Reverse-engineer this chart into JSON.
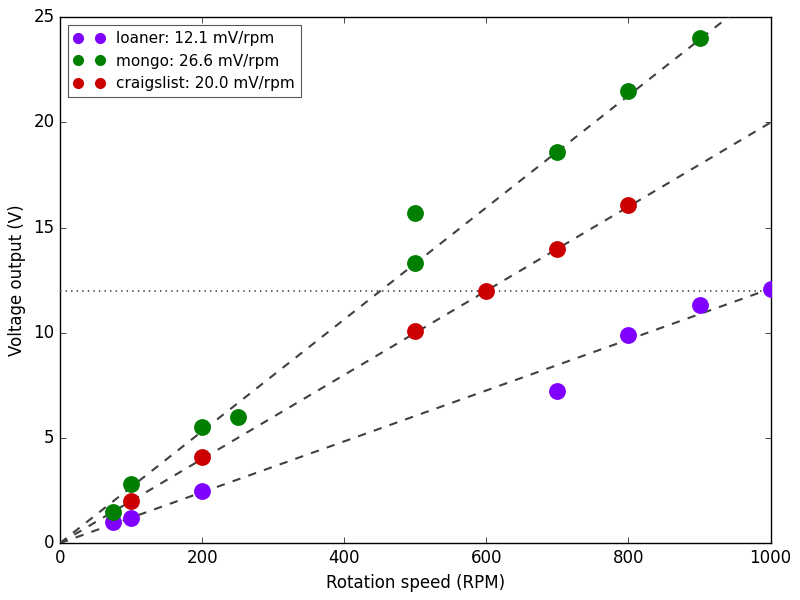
{
  "generators": [
    {
      "name": "loaner",
      "label": "loaner: 12.1 mV/rpm",
      "color": "#7f00ff",
      "slope_mv_rpm": 12.1,
      "rpm": [
        75,
        100,
        200,
        700,
        800,
        900,
        1000
      ],
      "voltage": [
        1.0,
        1.2,
        2.5,
        7.25,
        9.9,
        11.3,
        12.1
      ]
    },
    {
      "name": "mongo",
      "label": "mongo: 26.6 mV/rpm",
      "color": "#007f00",
      "slope_mv_rpm": 26.6,
      "rpm": [
        75,
        100,
        200,
        250,
        500,
        500,
        700,
        800,
        900
      ],
      "voltage": [
        1.5,
        2.8,
        5.5,
        6.0,
        13.3,
        15.7,
        18.6,
        21.5,
        24.0
      ]
    },
    {
      "name": "craigslist",
      "label": "craigslist: 20.0 mV/rpm",
      "color": "#cc0000",
      "slope_mv_rpm": 20.0,
      "rpm": [
        100,
        200,
        500,
        600,
        700,
        800
      ],
      "voltage": [
        2.0,
        4.1,
        10.1,
        12.0,
        14.0,
        16.1
      ]
    }
  ],
  "hline_y": 12.0,
  "xlabel": "Rotation speed (RPM)",
  "ylabel": "Voltage output (V)",
  "xlim": [
    0,
    1000
  ],
  "ylim": [
    0,
    25
  ],
  "xticks": [
    0,
    200,
    400,
    600,
    800,
    1000
  ],
  "yticks": [
    0,
    5,
    10,
    15,
    20,
    25
  ],
  "background_color": "#ffffff",
  "legend_loc": "upper left",
  "marker_size": 7,
  "line_color": "#404040",
  "line_width": 1.5,
  "fit_rpm_range": [
    0,
    1000
  ]
}
